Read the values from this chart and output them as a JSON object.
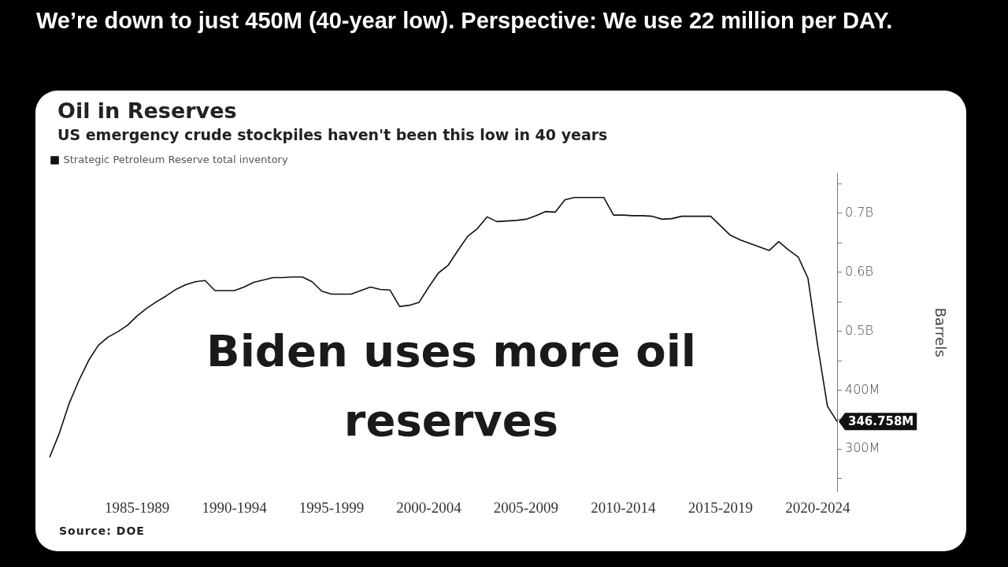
{
  "chart_data": {
    "type": "line",
    "title": "Oil in Reserves",
    "subtitle": "US emergency crude stockpiles haven't been this low in 40 years",
    "ylabel": "Barrels",
    "annotations": [
      "We’re down to just 450M (40-year low). Perspective: We use 22 million per DAY.",
      "Biden uses more oil reserves",
      "Source: DOE",
      "346.758M"
    ],
    "categories": [
      null,
      null,
      null,
      null,
      null,
      null,
      null,
      null,
      null,
      "1985-1989",
      null,
      null,
      null,
      null,
      null,
      null,
      null,
      null,
      null,
      "1990-1994",
      null,
      null,
      null,
      null,
      null,
      null,
      null,
      null,
      null,
      "1995-1999",
      null,
      null,
      null,
      null,
      null,
      null,
      null,
      null,
      null,
      "2000-2004",
      null,
      null,
      null,
      null,
      null,
      null,
      null,
      null,
      null,
      "2005-2009",
      null,
      null,
      null,
      null,
      null,
      null,
      null,
      null,
      null,
      "2010-2014",
      null,
      null,
      null,
      null,
      null,
      null,
      null,
      null,
      null,
      "2015-2019",
      null,
      null,
      null,
      null,
      null,
      null,
      null,
      null,
      null,
      "2020-2024",
      null,
      null
    ],
    "ylim": [
      228000000,
      768000000
    ],
    "yticks": [
      {
        "value": 250000000,
        "label": null
      },
      {
        "value": 300000000,
        "label": "300M"
      },
      {
        "value": 350000000,
        "label": null
      },
      {
        "value": 400000000,
        "label": "400M"
      },
      {
        "value": 450000000,
        "label": null
      },
      {
        "value": 500000000,
        "label": "0.5B"
      },
      {
        "value": 550000000,
        "label": null
      },
      {
        "value": 600000000,
        "label": "0.6B"
      },
      {
        "value": 650000000,
        "label": null
      },
      {
        "value": 700000000,
        "label": "0.7B"
      },
      {
        "value": 750000000,
        "label": null
      }
    ],
    "grid": false,
    "legend": "top left",
    "marker": "none",
    "line_style": "solid",
    "series": [
      {
        "name": "Strategic Petroleum Reserve total inventory",
        "color": "#111111",
        "values": [
          286000000,
          327000000,
          377000000,
          416000000,
          450000000,
          476000000,
          490000000,
          499000000,
          510000000,
          526000000,
          539000000,
          550000000,
          560000000,
          571000000,
          579000000,
          584000000,
          586000000,
          569000000,
          569000000,
          569000000,
          575000000,
          583000000,
          587000000,
          591000000,
          591000000,
          592000000,
          592000000,
          584000000,
          568000000,
          563000000,
          563000000,
          563000000,
          569000000,
          575000000,
          571000000,
          570000000,
          542000000,
          544000000,
          549000000,
          575000000,
          599000000,
          612000000,
          637000000,
          661000000,
          674000000,
          694000000,
          686000000,
          687000000,
          688000000,
          690000000,
          696000000,
          703000000,
          702000000,
          723000000,
          727000000,
          727000000,
          727000000,
          727000000,
          697000000,
          697000000,
          696000000,
          696000000,
          695000000,
          690000000,
          691000000,
          695000000,
          695000000,
          695000000,
          695000000,
          679000000,
          663000000,
          655000000,
          649000000,
          643000000,
          637000000,
          652000000,
          638000000,
          626000000,
          590000000,
          476000000,
          373000000,
          346758000
        ]
      }
    ]
  }
}
